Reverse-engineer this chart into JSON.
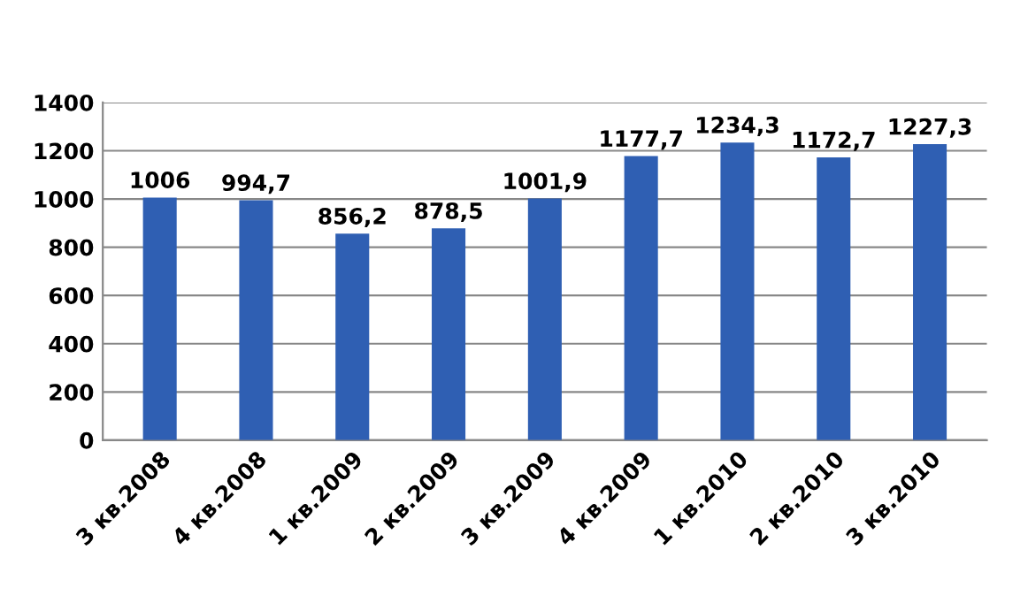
{
  "chart_data": {
    "type": "bar",
    "categories": [
      "3 кв.2008",
      "4 кв.2008",
      "1 кв.2009",
      "2 кв.2009",
      "3 кв.2009",
      "4 кв.2009",
      "1 кв.2010",
      "2 кв.2010",
      "3 кв.2010"
    ],
    "values": [
      1006,
      994.7,
      856.2,
      878.5,
      1001.9,
      1177.7,
      1234.3,
      1172.7,
      1227.3
    ],
    "value_labels": [
      "1006",
      "994,7",
      "856,2",
      "878,5",
      "1001,9",
      "1177,7",
      "1234,3",
      "1172,7",
      "1227,3"
    ],
    "color": "#2f5fb3",
    "ylim": [
      0,
      1400
    ],
    "yticks": [
      0,
      200,
      400,
      600,
      800,
      1000,
      1200,
      1400
    ],
    "grid": "y",
    "legend": false
  }
}
